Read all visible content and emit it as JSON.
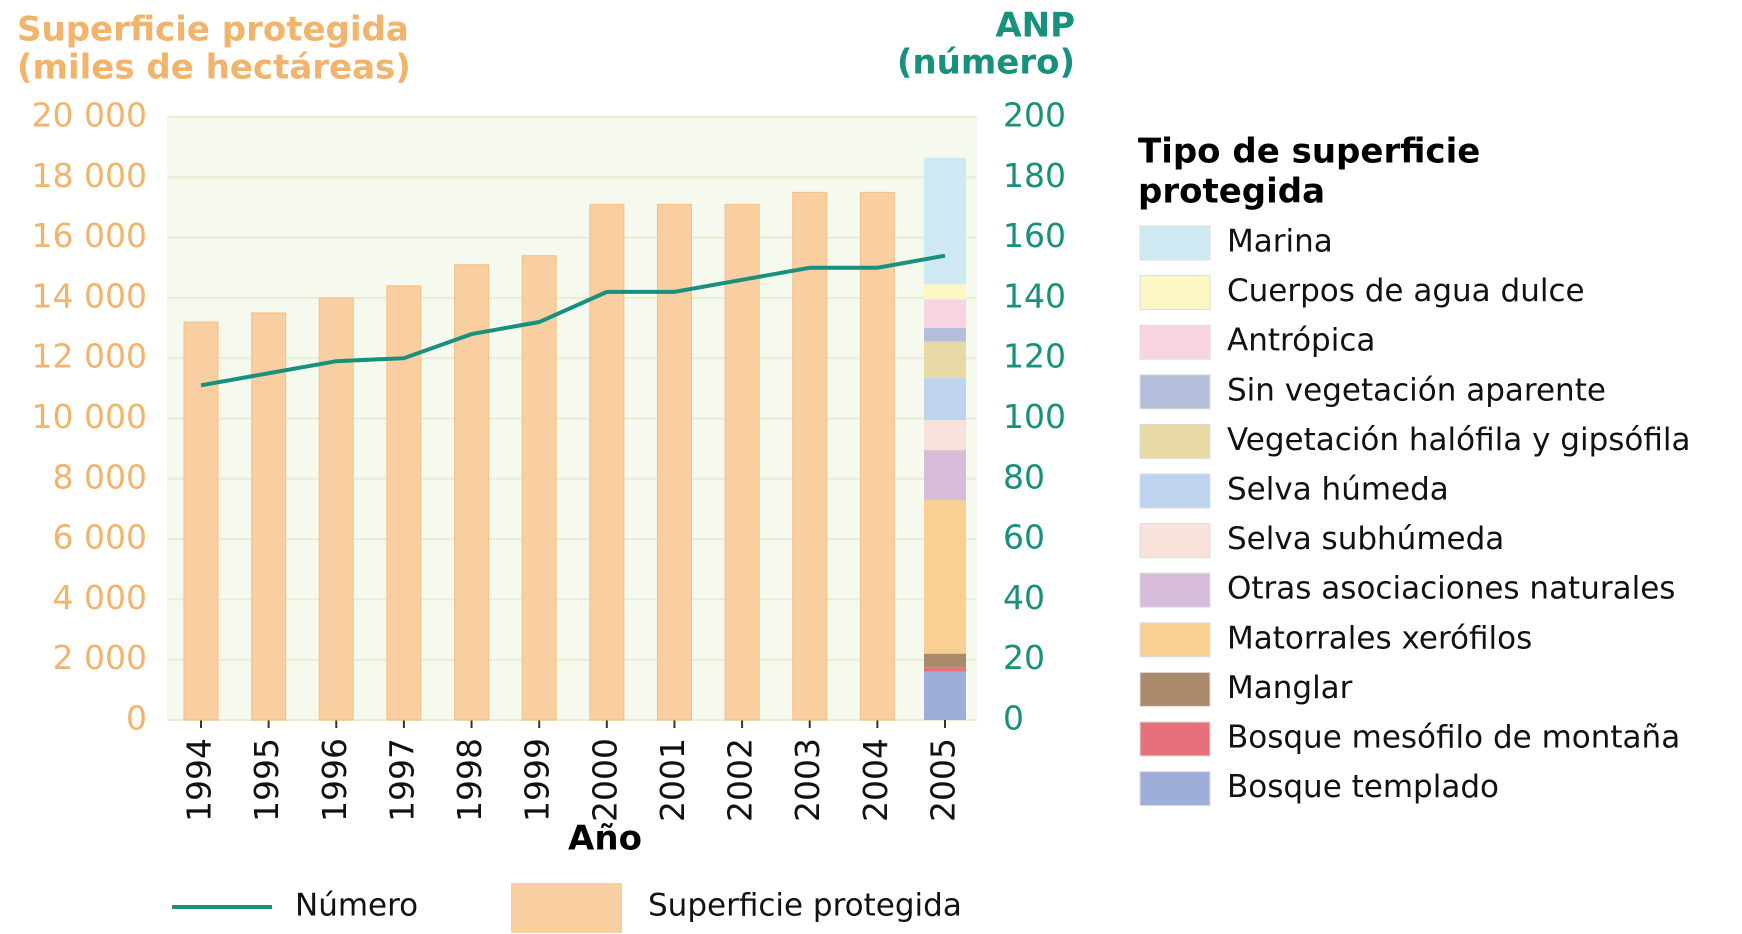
{
  "chart_data": {
    "type": "bar",
    "y_title": [
      "Superficie protegida",
      "(miles de hectáreas)"
    ],
    "y2_title": [
      "ANP",
      "(número)"
    ],
    "x_title": "Año",
    "categories": [
      "1994",
      "1995",
      "1996",
      "1997",
      "1998",
      "1999",
      "2000",
      "2001",
      "2002",
      "2003",
      "2004",
      "2005"
    ],
    "series": [
      {
        "name": "Superficie protegida",
        "color": "#f9cfa2",
        "values": [
          13200,
          13500,
          14000,
          14400,
          15100,
          15400,
          17100,
          17100,
          17100,
          17500,
          17500,
          null
        ]
      },
      {
        "name": "Número",
        "type": "line",
        "axis": "y2",
        "color": "#17907c",
        "values": [
          111,
          115,
          119,
          120,
          128,
          132,
          142,
          142,
          146,
          150,
          150,
          154
        ]
      }
    ],
    "breakdown_title": [
      "Tipo de superficie",
      "protegida"
    ],
    "breakdown": [
      {
        "name": "Marina",
        "color": "#cfe9f3",
        "value": 4200
      },
      {
        "name": "Cuerpos de agua dulce",
        "color": "#fdf7c3",
        "value": 500
      },
      {
        "name": "Antrópica",
        "color": "#f8d3e2",
        "value": 950
      },
      {
        "name": "Sin vegetación aparente",
        "color": "#b5bedb",
        "value": 450
      },
      {
        "name": "Vegetación halófila y gipsófila",
        "color": "#e8d9a5",
        "value": 1200
      },
      {
        "name": "Selva húmeda",
        "color": "#bdd3ee",
        "value": 1400
      },
      {
        "name": "Selva subhúmeda",
        "color": "#f9e1dc",
        "value": 1000
      },
      {
        "name": "Otras asociaciones naturales",
        "color": "#d7bcd9",
        "value": 1650
      },
      {
        "name": "Matorrales xerófilos",
        "color": "#f9cf92",
        "value": 5100
      },
      {
        "name": "Manglar",
        "color": "#a98a6b",
        "value": 450
      },
      {
        "name": "Bosque mesófilo de montaña",
        "color": "#e8707a",
        "value": 150
      },
      {
        "name": "Bosque templado",
        "color": "#9eaed8",
        "value": 1600
      }
    ],
    "ylim": [
      0,
      20000
    ],
    "yticks": [
      0,
      {
        "value": 2000,
        "label": "2 000"
      },
      {
        "value": 4000,
        "label": "4 000"
      },
      {
        "value": 6000,
        "label": "6 000"
      },
      {
        "value": 8000,
        "label": "8 000"
      },
      {
        "value": 10000,
        "label": "10 000"
      },
      {
        "value": 12000,
        "label": "12 000"
      },
      {
        "value": 14000,
        "label": "14 000"
      },
      {
        "value": 16000,
        "label": "16 000"
      },
      {
        "value": 18000,
        "label": "18 000"
      },
      {
        "value": 20000,
        "label": "20 000"
      }
    ],
    "y2lim": [
      0,
      200
    ],
    "y2ticks": [
      0,
      20,
      40,
      60,
      80,
      100,
      120,
      140,
      160,
      180,
      200
    ],
    "grid": true
  }
}
